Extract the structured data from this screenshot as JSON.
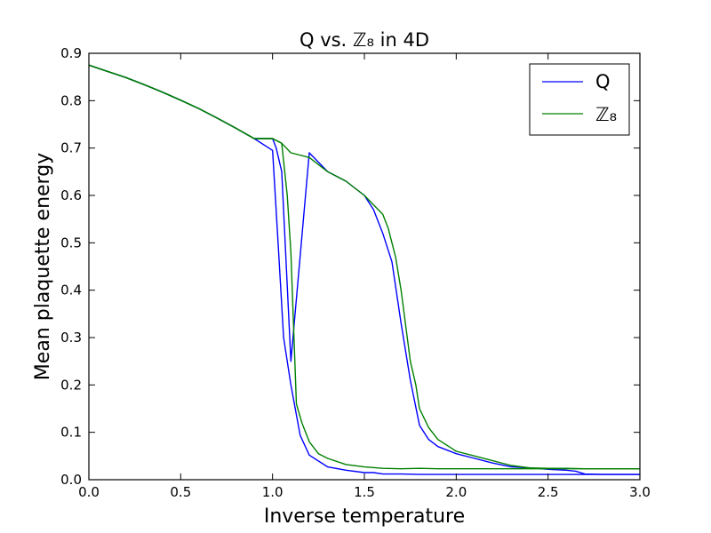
{
  "chart_data": {
    "type": "line",
    "title": "Q vs. ℤ₈ in 4D",
    "xlabel": "Inverse temperature",
    "ylabel": "Mean plaquette energy",
    "xlim": [
      0.0,
      3.0
    ],
    "ylim": [
      0.0,
      0.9
    ],
    "xticks": [
      0.0,
      0.5,
      1.0,
      1.5,
      2.0,
      2.5,
      3.0
    ],
    "yticks": [
      0.0,
      0.1,
      0.2,
      0.3,
      0.4,
      0.5,
      0.6,
      0.7,
      0.8,
      0.9
    ],
    "xtick_labels": [
      "0.0",
      "0.5",
      "1.0",
      "1.5",
      "2.0",
      "2.5",
      "3.0"
    ],
    "ytick_labels": [
      "0.0",
      "0.1",
      "0.2",
      "0.3",
      "0.4",
      "0.5",
      "0.6",
      "0.7",
      "0.8",
      "0.9"
    ],
    "grid": false,
    "legend_position": "top-right",
    "colors": {
      "Q": "#0000ff",
      "Z8": "#008000"
    },
    "series": [
      {
        "name": "Q",
        "color": "#0000ff",
        "branches": [
          {
            "x": [
              0.0,
              0.1,
              0.2,
              0.3,
              0.4,
              0.5,
              0.6,
              0.7,
              0.8,
              0.9,
              1.0,
              1.03,
              1.06,
              1.1,
              1.15,
              1.2,
              1.3,
              1.4,
              1.5,
              1.55,
              1.6,
              1.7,
              1.8,
              1.9,
              2.0,
              2.1,
              2.2,
              2.3,
              2.4,
              2.5,
              2.6,
              2.7,
              2.8,
              2.9,
              3.0
            ],
            "y": [
              0.875,
              0.862,
              0.849,
              0.834,
              0.818,
              0.801,
              0.783,
              0.763,
              0.742,
              0.72,
              0.695,
              0.5,
              0.3,
              0.2,
              0.094,
              0.052,
              0.027,
              0.02,
              0.015,
              0.015,
              0.012,
              0.012,
              0.011,
              0.011,
              0.011,
              0.011,
              0.011,
              0.011,
              0.011,
              0.011,
              0.011,
              0.011,
              0.011,
              0.011,
              0.011
            ]
          },
          {
            "x": [
              0.0,
              0.1,
              0.2,
              0.3,
              0.4,
              0.5,
              0.6,
              0.7,
              0.8,
              0.9,
              1.0,
              1.02,
              1.05,
              1.1,
              1.2,
              1.3,
              1.4,
              1.5,
              1.55,
              1.6,
              1.65,
              1.7,
              1.75,
              1.8,
              1.85,
              1.9,
              2.0,
              2.1,
              2.2,
              2.3,
              2.4,
              2.5,
              2.6,
              2.65,
              2.7,
              2.8,
              2.9,
              3.0
            ],
            "y": [
              0.875,
              0.862,
              0.849,
              0.834,
              0.818,
              0.801,
              0.783,
              0.763,
              0.742,
              0.72,
              0.72,
              0.7,
              0.65,
              0.25,
              0.69,
              0.65,
              0.63,
              0.6,
              0.57,
              0.52,
              0.46,
              0.33,
              0.21,
              0.115,
              0.085,
              0.07,
              0.055,
              0.045,
              0.035,
              0.027,
              0.025,
              0.022,
              0.02,
              0.018,
              0.012,
              0.011,
              0.011,
              0.011
            ]
          }
        ]
      },
      {
        "name": "ℤ₈",
        "color": "#008000",
        "branches": [
          {
            "x": [
              0.0,
              0.1,
              0.2,
              0.3,
              0.4,
              0.5,
              0.6,
              0.7,
              0.8,
              0.9,
              1.0,
              1.05,
              1.08,
              1.1,
              1.13,
              1.16,
              1.2,
              1.25,
              1.3,
              1.4,
              1.5,
              1.6,
              1.7,
              1.8,
              1.9,
              2.0,
              2.2,
              2.4,
              2.6,
              2.8,
              3.0
            ],
            "y": [
              0.875,
              0.862,
              0.849,
              0.834,
              0.818,
              0.801,
              0.783,
              0.763,
              0.742,
              0.72,
              0.72,
              0.71,
              0.6,
              0.48,
              0.16,
              0.12,
              0.08,
              0.055,
              0.045,
              0.032,
              0.027,
              0.024,
              0.023,
              0.024,
              0.023,
              0.023,
              0.023,
              0.023,
              0.023,
              0.023,
              0.023
            ]
          },
          {
            "x": [
              0.0,
              0.1,
              0.2,
              0.3,
              0.4,
              0.5,
              0.6,
              0.7,
              0.8,
              0.9,
              1.0,
              1.05,
              1.1,
              1.2,
              1.3,
              1.4,
              1.5,
              1.6,
              1.63,
              1.67,
              1.7,
              1.75,
              1.78,
              1.8,
              1.85,
              1.9,
              2.0,
              2.1,
              2.2,
              2.3,
              2.4,
              2.5,
              2.6,
              2.7,
              2.8,
              2.9,
              3.0
            ],
            "y": [
              0.875,
              0.862,
              0.849,
              0.834,
              0.818,
              0.801,
              0.783,
              0.763,
              0.742,
              0.72,
              0.72,
              0.71,
              0.69,
              0.68,
              0.65,
              0.63,
              0.6,
              0.56,
              0.53,
              0.47,
              0.4,
              0.25,
              0.2,
              0.15,
              0.11,
              0.085,
              0.06,
              0.05,
              0.04,
              0.03,
              0.025,
              0.024,
              0.024,
              0.023,
              0.023,
              0.023,
              0.023
            ]
          }
        ]
      }
    ]
  }
}
